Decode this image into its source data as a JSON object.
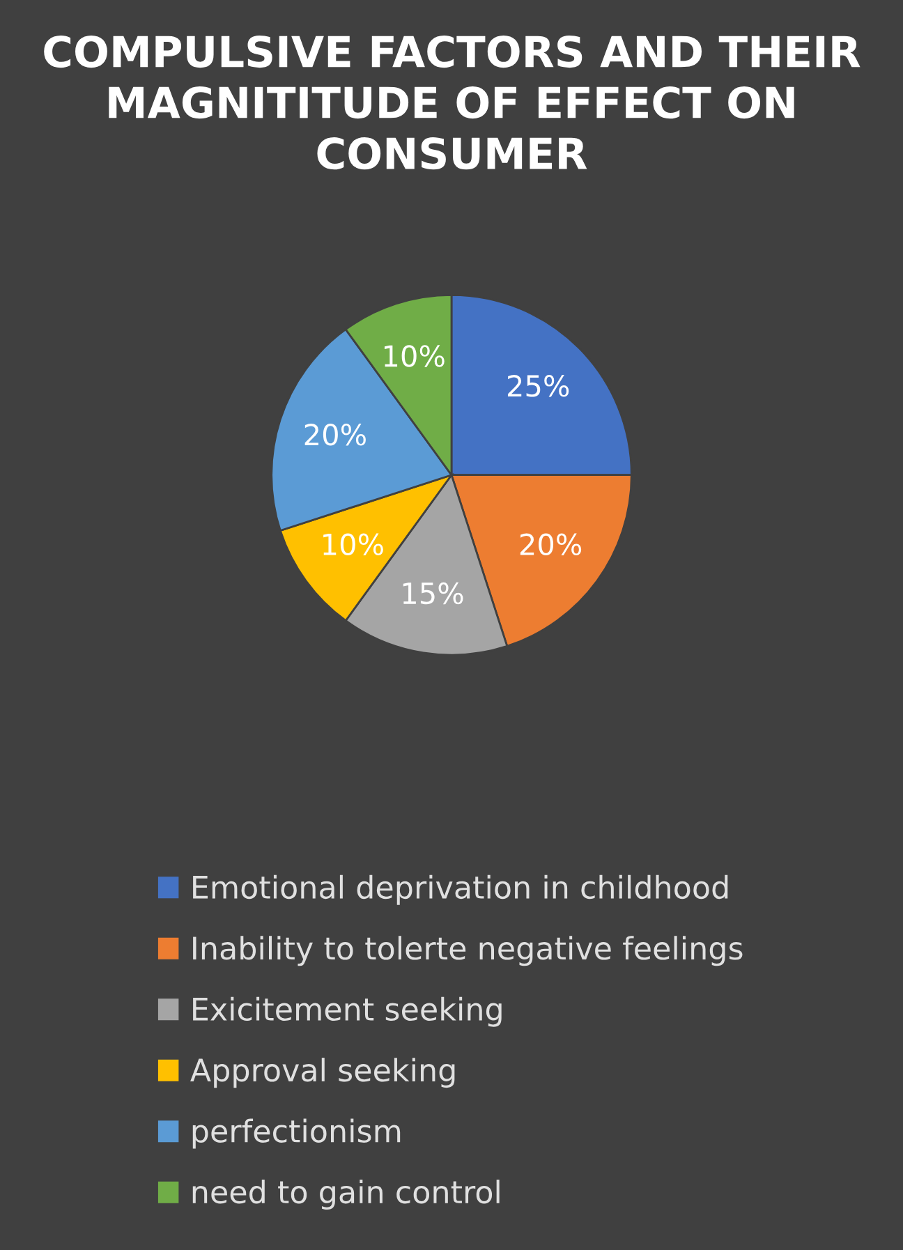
{
  "chart_data": {
    "type": "pie",
    "title": "COMPULSIVE FACTORS AND THEIR MAGNITITUDE OF EFFECT ON CONSUMER",
    "categories": [
      "Emotional deprivation in childhood",
      "Inability to tolerte negative feelings",
      "Exicitement seeking",
      "Approval seeking",
      "perfectionism",
      "need to gain control"
    ],
    "values": [
      25,
      20,
      15,
      10,
      20,
      10
    ],
    "value_labels": [
      "25%",
      "20%",
      "15%",
      "10%",
      "20%",
      "10%"
    ],
    "colors": [
      "#4472c4",
      "#ed7d31",
      "#a5a5a5",
      "#ffc000",
      "#5b9bd5",
      "#70ad47"
    ],
    "legend": "bottom"
  }
}
